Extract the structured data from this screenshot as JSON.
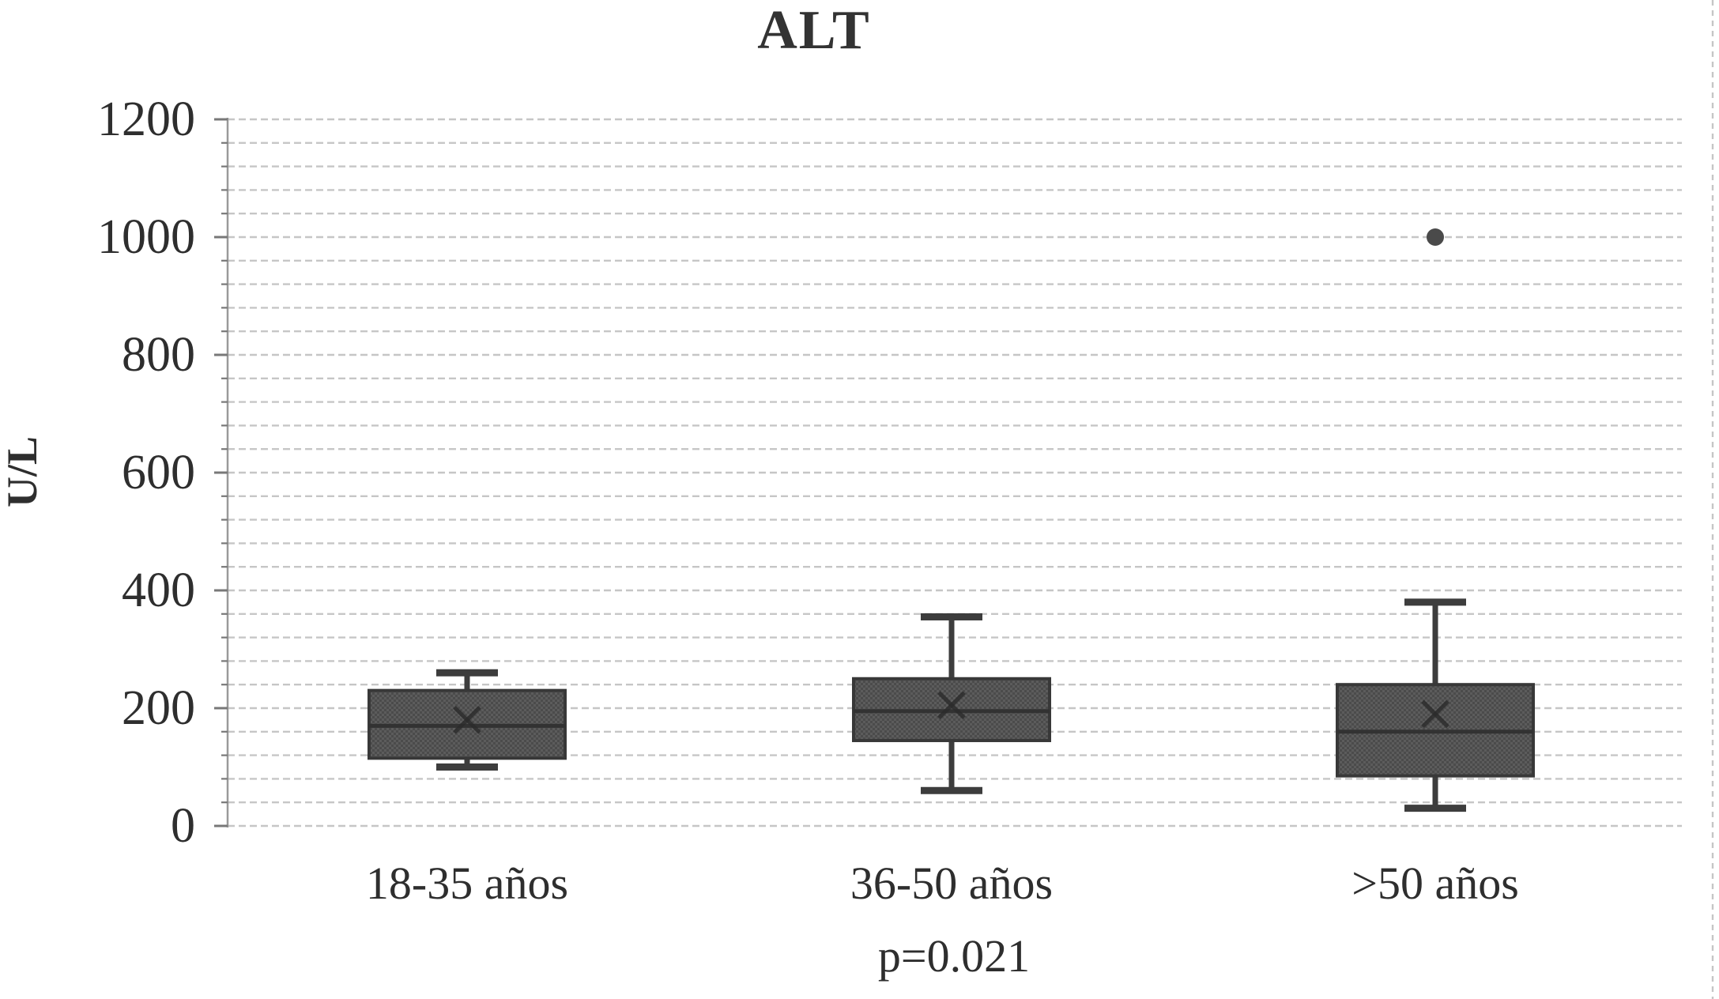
{
  "chart_data": {
    "type": "boxplot",
    "title": "ALT",
    "ylabel": "U/L",
    "xlabel": "",
    "ylim": [
      0,
      1200
    ],
    "ytick_interval": 200,
    "minor_grid_interval": 40,
    "ytick_labels": [
      "1200",
      "1000",
      "800",
      "600",
      "400",
      "200",
      "0"
    ],
    "categories": [
      "18-35 años",
      "36-50 años",
      ">50 años"
    ],
    "annotation": "p=0.021",
    "grid": "horizontal dashed lines every 40 units",
    "legend_position": "none",
    "series": [
      {
        "category": "18-35 años",
        "whisker_low": 100,
        "q1": 115,
        "median": 170,
        "q3": 230,
        "whisker_high": 260,
        "mean": 180,
        "outliers": []
      },
      {
        "category": "36-50 años",
        "whisker_low": 60,
        "q1": 145,
        "median": 195,
        "q3": 250,
        "whisker_high": 355,
        "mean": 205,
        "outliers": []
      },
      {
        "category": ">50 años",
        "whisker_low": 30,
        "q1": 85,
        "median": 160,
        "q3": 240,
        "whisker_high": 380,
        "mean": 190,
        "outliers": [
          1000
        ]
      }
    ],
    "colors": {
      "box_fill": "#4b4b4b",
      "box_fill_texture": "#5c5c5c",
      "box_border": "#383838",
      "median_line": "#323232",
      "whisker": "#3d3d3d",
      "mean_marker": "#2b2b2b",
      "outlier": "#4a4a4a",
      "gridline": "#c6c6c6",
      "axis": "#9a9a9a",
      "tick": "#787878",
      "text": "#2e2e2e",
      "background": "#ffffff"
    }
  }
}
